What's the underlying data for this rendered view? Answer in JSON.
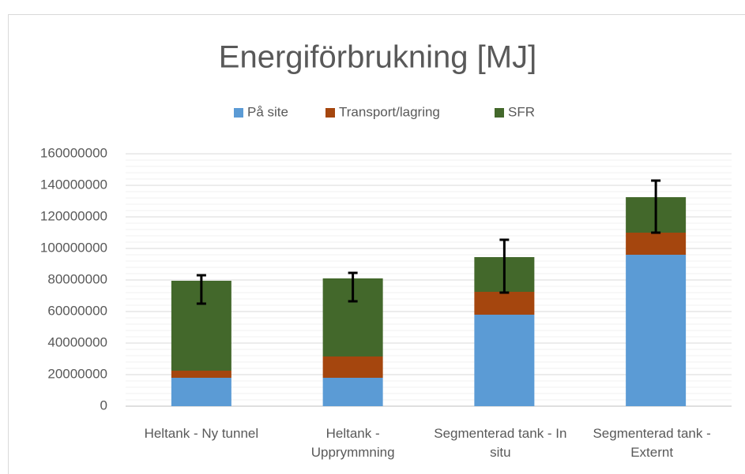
{
  "chart_data": {
    "type": "stacked_bar",
    "title": "Energiförbrukning [MJ]",
    "categories": [
      "Heltank - Ny tunnel",
      "Heltank - Upprymmning",
      "Segmenterad tank - In situ",
      "Segmenterad tank - Externt"
    ],
    "series": [
      {
        "name": "På site",
        "color": "#5b9bd5",
        "values": [
          18000000,
          18000000,
          58000000,
          96000000
        ]
      },
      {
        "name": "Transport/lagring",
        "color": "#a5460e",
        "values": [
          4500000,
          13500000,
          14500000,
          14000000
        ]
      },
      {
        "name": "SFR",
        "color": "#43682b",
        "values": [
          57000000,
          49500000,
          22000000,
          22500000
        ]
      }
    ],
    "error_low": [
      65000000,
      66500000,
      72000000,
      110000000
    ],
    "error_high": [
      83000000,
      84500000,
      105500000,
      143000000
    ],
    "ylim": [
      0,
      160000000
    ],
    "yticks": [
      0,
      20000000,
      40000000,
      60000000,
      80000000,
      100000000,
      120000000,
      140000000,
      160000000
    ],
    "grid": true,
    "minor_grid": true,
    "legend": "top"
  }
}
